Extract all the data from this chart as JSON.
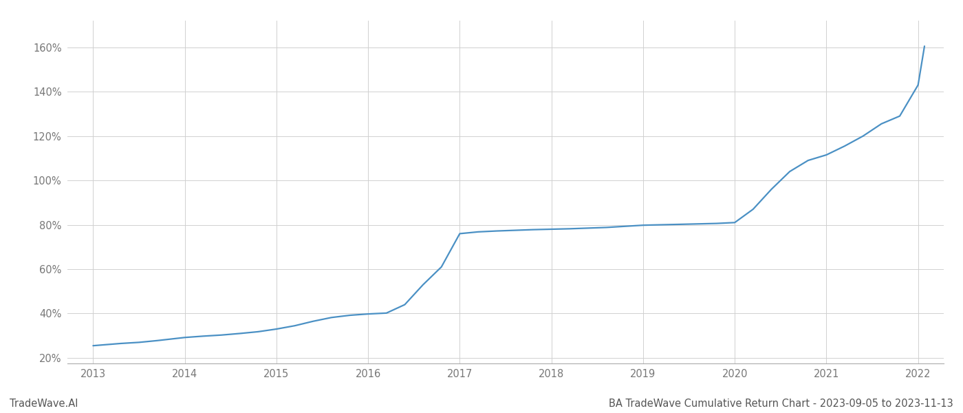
{
  "title": "BA TradeWave Cumulative Return Chart - 2023-09-05 to 2023-11-13",
  "watermark": "TradeWave.AI",
  "line_color": "#4a90c4",
  "background_color": "#ffffff",
  "grid_color": "#d0d0d0",
  "x_years": [
    2013,
    2014,
    2015,
    2016,
    2017,
    2018,
    2019,
    2020,
    2021,
    2022
  ],
  "data_x": [
    2013.0,
    2013.15,
    2013.3,
    2013.5,
    2013.7,
    2013.85,
    2014.0,
    2014.2,
    2014.4,
    2014.6,
    2014.8,
    2015.0,
    2015.2,
    2015.4,
    2015.6,
    2015.8,
    2016.0,
    2016.1,
    2016.2,
    2016.4,
    2016.6,
    2016.8,
    2017.0,
    2017.2,
    2017.4,
    2017.6,
    2017.8,
    2018.0,
    2018.2,
    2018.4,
    2018.6,
    2018.8,
    2019.0,
    2019.2,
    2019.4,
    2019.6,
    2019.8,
    2020.0,
    2020.2,
    2020.4,
    2020.6,
    2020.8,
    2021.0,
    2021.2,
    2021.4,
    2021.6,
    2021.8,
    2022.0,
    2022.07
  ],
  "data_y": [
    0.255,
    0.26,
    0.265,
    0.27,
    0.278,
    0.285,
    0.292,
    0.298,
    0.303,
    0.31,
    0.318,
    0.33,
    0.345,
    0.365,
    0.382,
    0.392,
    0.398,
    0.4,
    0.402,
    0.44,
    0.53,
    0.61,
    0.76,
    0.768,
    0.772,
    0.775,
    0.778,
    0.78,
    0.782,
    0.785,
    0.788,
    0.793,
    0.798,
    0.8,
    0.802,
    0.804,
    0.806,
    0.81,
    0.87,
    0.96,
    1.04,
    1.09,
    1.115,
    1.155,
    1.2,
    1.255,
    1.29,
    1.43,
    1.605
  ],
  "ylim": [
    0.175,
    1.72
  ],
  "xlim": [
    2012.72,
    2022.28
  ],
  "yticks": [
    0.2,
    0.4,
    0.6,
    0.8,
    1.0,
    1.2,
    1.4,
    1.6
  ],
  "ytick_labels": [
    "20%",
    "40%",
    "60%",
    "80%",
    "100%",
    "120%",
    "140%",
    "160%"
  ],
  "line_width": 1.6,
  "title_fontsize": 10.5,
  "tick_fontsize": 10.5,
  "watermark_fontsize": 10.5
}
